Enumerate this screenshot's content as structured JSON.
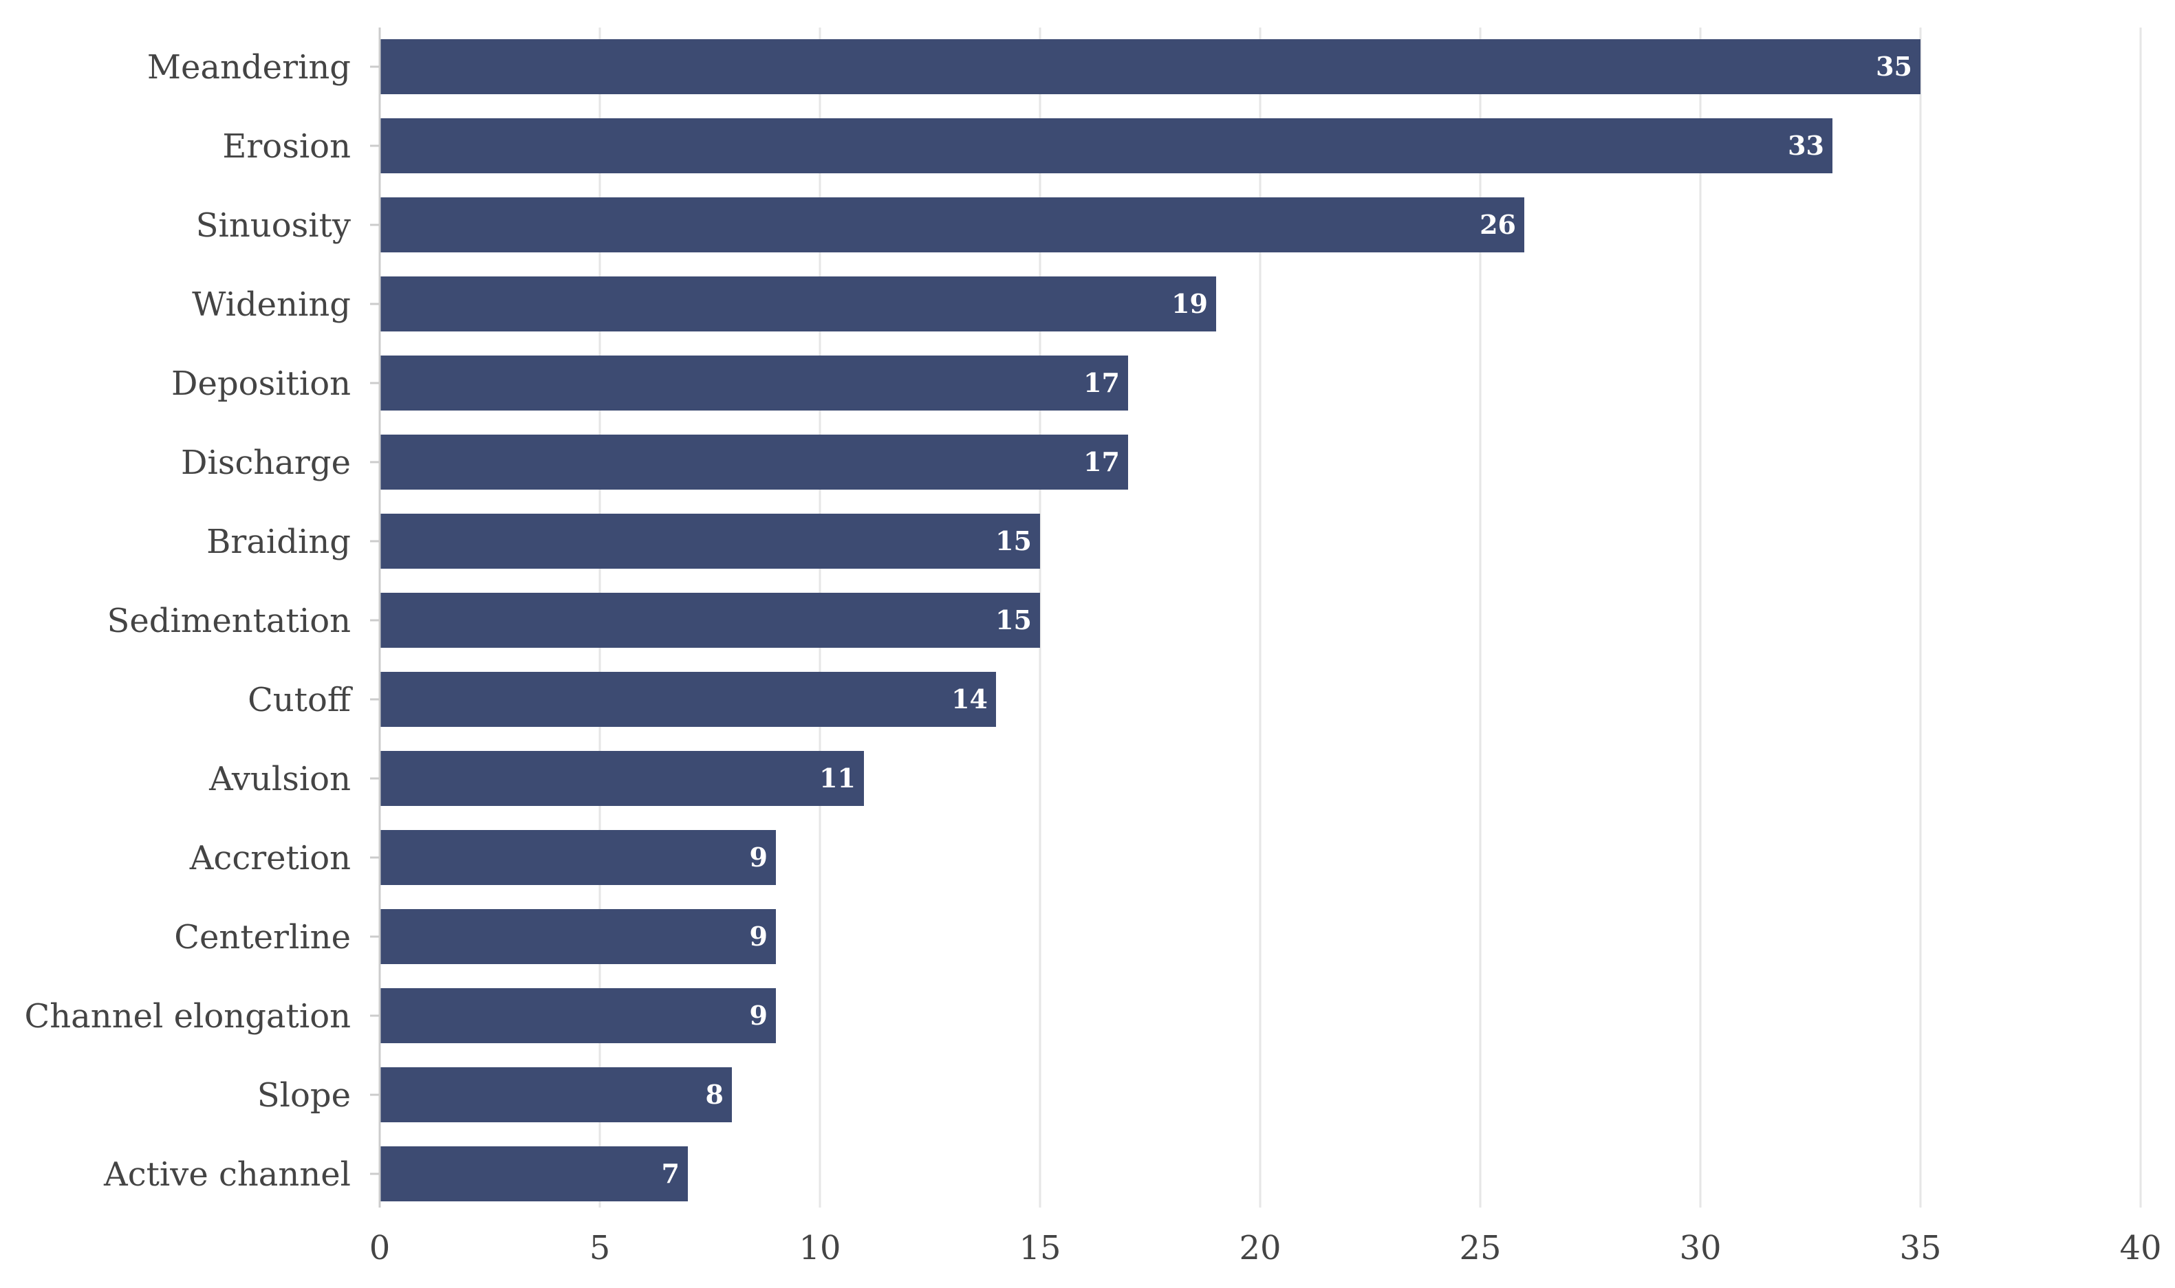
{
  "chart_data": {
    "type": "bar",
    "orientation": "horizontal",
    "categories": [
      "Meandering",
      "Erosion",
      "Sinuosity",
      "Widening",
      "Deposition",
      "Discharge",
      "Braiding",
      "Sedimentation",
      "Cutoff",
      "Avulsion",
      "Accretion",
      "Centerline",
      "Channel elongation",
      "Slope",
      "Active channel"
    ],
    "values": [
      35,
      33,
      26,
      19,
      17,
      17,
      15,
      15,
      14,
      11,
      9,
      9,
      9,
      8,
      7
    ],
    "value_labels": [
      "35",
      "33",
      "26",
      "19",
      "17",
      "17",
      "15",
      "15",
      "14",
      "11",
      "9",
      "9",
      "9",
      "8",
      "7"
    ],
    "title": "",
    "xlabel": "",
    "ylabel": "",
    "xlim": [
      0,
      40
    ],
    "x_ticks": [
      0,
      5,
      10,
      15,
      20,
      25,
      30,
      35,
      40
    ],
    "x_tick_labels": [
      "0",
      "5",
      "10",
      "15",
      "20",
      "25",
      "30",
      "35",
      "40"
    ],
    "grid": "vertical",
    "legend": "none",
    "bar_color": "#3d4b72",
    "value_label_color": "#ffffff",
    "grid_color": "#e6e6e6",
    "text_color": "#444444"
  }
}
